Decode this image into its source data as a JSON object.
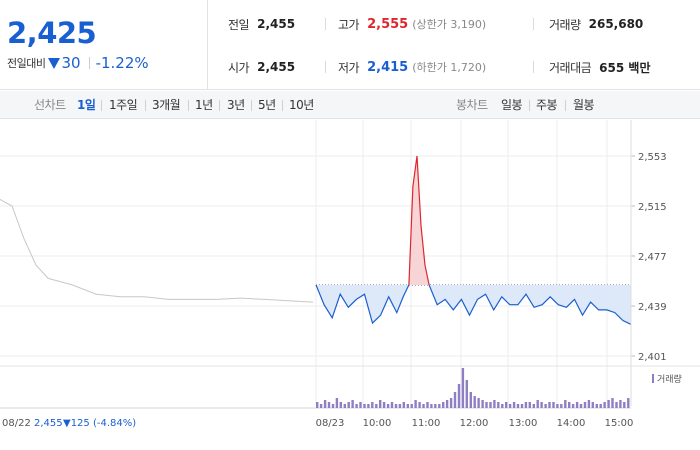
{
  "header": {
    "price": "2,425",
    "change_label": "전일대비",
    "change_icon": "down-triangle-icon",
    "change_value": "30",
    "change_rate": "-1.22%",
    "stats": {
      "prev_close": {
        "label": "전일",
        "value": "2,455"
      },
      "open": {
        "label": "시가",
        "value": "2,455"
      },
      "high": {
        "label": "고가",
        "value": "2,555",
        "sub": "(상한가 3,190)"
      },
      "low": {
        "label": "저가",
        "value": "2,415",
        "sub": "(하한가 1,720)"
      },
      "volume": {
        "label": "거래량",
        "value": "265,680"
      },
      "amount": {
        "label": "거래대금",
        "value": "655 백만"
      }
    }
  },
  "tabs": {
    "line_title": "선차트",
    "line_items": [
      "1일",
      "1주일",
      "3개월",
      "1년",
      "3년",
      "5년",
      "10년"
    ],
    "line_active": "1일",
    "candle_title": "봉차트",
    "candle_items": [
      "일봉",
      "주봉",
      "월봉"
    ]
  },
  "colors": {
    "up": "#e0252c",
    "down": "#1a5fd1",
    "prev_day": "#c8c8c8",
    "volume": "#8f7ec4"
  },
  "chart_data": {
    "type": "line",
    "y_ticks": [
      "2,553",
      "2,515",
      "2,477",
      "2,439",
      "2,401"
    ],
    "ylim": [
      2401,
      2553
    ],
    "x_tick_labels": [
      "08/22",
      "08/23",
      "10:00",
      "11:00",
      "12:00",
      "13:00",
      "14:00",
      "15:00"
    ],
    "prev_day_label": "08/22",
    "prev_day_close": "2,455",
    "prev_day_change": "▼125 (-4.84%)",
    "reference_price": 2455,
    "volume_legend": "거래량",
    "prev_day_series": {
      "x": [
        "09:00",
        "09:15",
        "09:30",
        "09:45",
        "10:00",
        "10:30",
        "11:00",
        "11:30",
        "12:00",
        "12:30",
        "13:00",
        "13:30",
        "14:00",
        "14:30",
        "15:00",
        "15:30"
      ],
      "y": [
        2520,
        2515,
        2490,
        2470,
        2460,
        2455,
        2448,
        2446,
        2446,
        2444,
        2444,
        2444,
        2445,
        2444,
        2443,
        2442
      ]
    },
    "series": {
      "x": [
        "09:00",
        "09:10",
        "09:20",
        "09:30",
        "09:40",
        "09:50",
        "10:00",
        "10:10",
        "10:20",
        "10:30",
        "10:40",
        "10:48",
        "10:55",
        "11:00",
        "11:05",
        "11:10",
        "11:15",
        "11:20",
        "11:30",
        "11:40",
        "11:50",
        "12:00",
        "12:10",
        "12:20",
        "12:30",
        "12:40",
        "12:50",
        "13:00",
        "13:10",
        "13:20",
        "13:30",
        "13:40",
        "13:50",
        "14:00",
        "14:10",
        "14:20",
        "14:30",
        "14:40",
        "14:50",
        "15:00",
        "15:10",
        "15:20",
        "15:30"
      ],
      "y": [
        2455,
        2440,
        2430,
        2448,
        2438,
        2444,
        2448,
        2426,
        2432,
        2446,
        2434,
        2446,
        2455,
        2530,
        2553,
        2500,
        2470,
        2455,
        2440,
        2444,
        2436,
        2444,
        2432,
        2444,
        2448,
        2436,
        2446,
        2440,
        2440,
        2448,
        2438,
        2440,
        2446,
        2440,
        2438,
        2444,
        2432,
        2442,
        2436,
        2436,
        2434,
        2428,
        2425
      ]
    },
    "volume_bars": [
      3,
      2,
      4,
      3,
      2,
      5,
      3,
      2,
      3,
      4,
      2,
      3,
      2,
      2,
      3,
      2,
      4,
      3,
      2,
      3,
      2,
      2,
      3,
      2,
      2,
      4,
      3,
      2,
      3,
      2,
      2,
      2,
      3,
      4,
      5,
      8,
      12,
      20,
      14,
      8,
      6,
      5,
      4,
      3,
      3,
      4,
      3,
      2,
      3,
      2,
      3,
      2,
      2,
      3,
      3,
      2,
      4,
      3,
      2,
      3,
      3,
      2,
      2,
      4,
      3,
      2,
      3,
      2,
      3,
      4,
      3,
      2,
      2,
      3,
      4,
      5,
      3,
      4,
      3,
      5
    ]
  }
}
